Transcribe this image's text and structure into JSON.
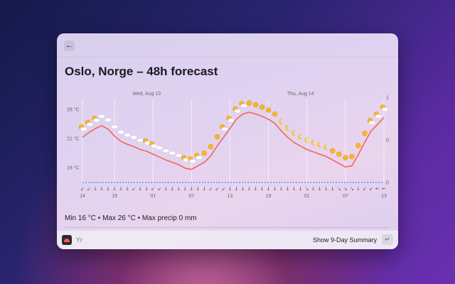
{
  "header": {
    "back_label": "←",
    "title": "Oslo, Norge – 48h forecast"
  },
  "chart_data": {
    "type": "line",
    "title": "",
    "day_labels": [
      {
        "label": "Wed, Aug 13",
        "index": 10
      },
      {
        "label": "Thu, Aug 14",
        "index": 34
      }
    ],
    "x_ticks": [
      {
        "label": "14",
        "index": 0
      },
      {
        "label": "19",
        "index": 5
      },
      {
        "label": "01",
        "index": 11
      },
      {
        "label": "07",
        "index": 17
      },
      {
        "label": "13",
        "index": 23
      },
      {
        "label": "19",
        "index": 29
      },
      {
        "label": "01",
        "index": 35
      },
      {
        "label": "07",
        "index": 41
      },
      {
        "label": "13",
        "index": 47
      }
    ],
    "y_ticks": [
      {
        "label": "26 °C",
        "value": 26
      },
      {
        "label": "21 °C",
        "value": 21
      },
      {
        "label": "16 °C",
        "value": 16
      }
    ],
    "ylim": [
      13,
      27.5
    ],
    "right_ticks": [
      {
        "label": "1",
        "value": 1
      },
      {
        "label": "0.",
        "value": 0.5
      },
      {
        "label": "0",
        "value": 0
      }
    ],
    "temperature": [
      21.2,
      22.0,
      22.7,
      23.2,
      22.6,
      21.4,
      20.5,
      20.0,
      19.6,
      19.1,
      18.8,
      18.3,
      17.8,
      17.3,
      16.9,
      16.5,
      15.9,
      15.7,
      16.3,
      16.9,
      18.0,
      19.7,
      21.2,
      22.7,
      24.3,
      25.2,
      25.5,
      25.2,
      24.8,
      24.3,
      23.6,
      22.3,
      21.2,
      20.3,
      19.7,
      19.1,
      18.7,
      18.3,
      17.9,
      17.3,
      16.7,
      16.1,
      16.3,
      18.2,
      20.3,
      22.3,
      23.4,
      24.6
    ],
    "precipitation": [
      0,
      0,
      0,
      0,
      0,
      0,
      0,
      0,
      0,
      0,
      0,
      0,
      0,
      0,
      0,
      0,
      0,
      0,
      0,
      0,
      0,
      0,
      0,
      0,
      0,
      0,
      0,
      0,
      0,
      0,
      0,
      0,
      0,
      0,
      0,
      0,
      0,
      0,
      0,
      0,
      0,
      0,
      0,
      0,
      0,
      0,
      0,
      0
    ],
    "symbols": [
      "p",
      "p",
      "p",
      "c",
      "c",
      "c",
      "c",
      "c",
      "c",
      "c",
      "p",
      "p",
      "c",
      "c",
      "c",
      "c",
      "p",
      "p",
      "p",
      "s",
      "s",
      "s",
      "p",
      "p",
      "p",
      "p",
      "s",
      "s",
      "s",
      "s",
      "s",
      "m",
      "m",
      "m",
      "m",
      "m",
      "m",
      "m",
      "m",
      "s",
      "s",
      "s",
      "s",
      "s",
      "s",
      "p",
      "p",
      "p"
    ],
    "wind": [
      "↙",
      "↙",
      "↓",
      "↓",
      "↓",
      "↓",
      "↓",
      "↓",
      "↙",
      "↓",
      "↓",
      "↙",
      "↙",
      "↓",
      "↓",
      "↓",
      "↓",
      "↓",
      "↓",
      "↓",
      "↙",
      "↙",
      "↙",
      "↓",
      "↓",
      "↓",
      "↓",
      "↓",
      "↓",
      "↓",
      "↓",
      "↓",
      "↓",
      "↓",
      "↓",
      "↘",
      "↓",
      "↓",
      "↓",
      "↓",
      "↘",
      "↘",
      "↘",
      "↓",
      "↙",
      "↙",
      "←",
      "←"
    ],
    "colors": {
      "temp": "#f2665a",
      "precip": "#4a8ef0",
      "sun": "#f5b82a",
      "cloud": "#ffffff",
      "moon": "#f3c620"
    }
  },
  "summary": "Min 16 °C • Max 26 °C • Max precip 0 mm",
  "footer": {
    "app_name": "Yr",
    "action_label": "Show 9-Day Summary",
    "enter_label": "↵"
  }
}
